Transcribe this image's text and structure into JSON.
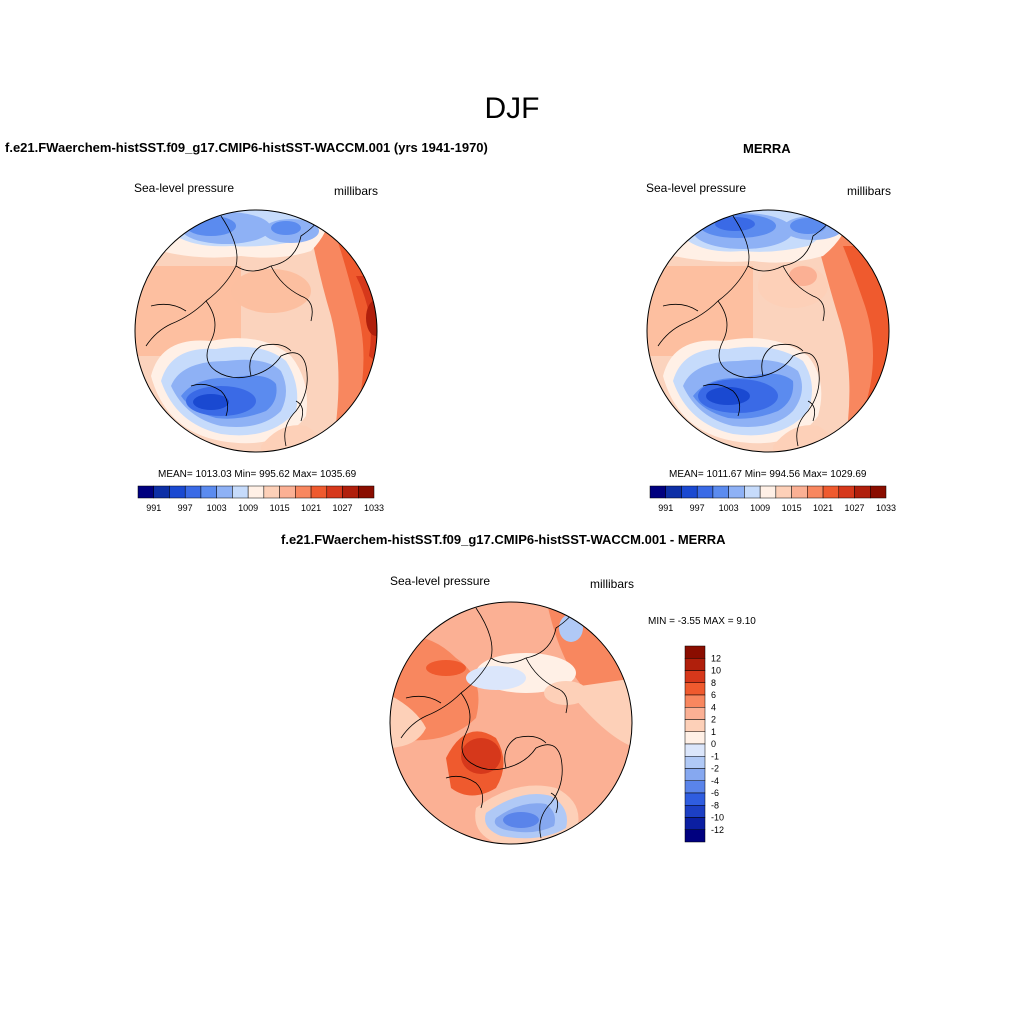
{
  "figure": {
    "title": "DJF"
  },
  "panels": [
    {
      "title": "f.e21.FWaerchem-histSST.f09_g17.CMIP6-histSST-WACCM.001 (yrs 1941-1970)",
      "left_label": "Sea-level pressure",
      "right_label": "millibars",
      "stats": "MEAN= 1013.03  Min= 995.62  Max= 1035.69"
    },
    {
      "title": "MERRA",
      "left_label": "Sea-level pressure",
      "right_label": "millibars",
      "stats": "MEAN= 1011.67  Min= 994.56  Max= 1029.69"
    },
    {
      "title": "f.e21.FWaerchem-histSST.f09_g17.CMIP6-histSST-WACCM.001 - MERRA",
      "left_label": "Sea-level pressure",
      "right_label": "millibars",
      "stats": "MIN =  -3.55 MAX =   9.10"
    }
  ],
  "colorbars": {
    "absolute": {
      "colors": [
        "#00007f",
        "#0d2fa6",
        "#1a49d1",
        "#3a6ae6",
        "#5b8bef",
        "#8eb1f5",
        "#c6dbfb",
        "#fff0e6",
        "#fdd0b8",
        "#fbb094",
        "#f8875f",
        "#ef5a2e",
        "#d6381b",
        "#b01f0c",
        "#8a0d00"
      ],
      "tick_labels": [
        "991",
        "997",
        "1003",
        "1009",
        "1015",
        "1021",
        "1027",
        "1033"
      ]
    },
    "difference": {
      "colors": [
        "#8a0d00",
        "#b01f0c",
        "#d6381b",
        "#ef5a2e",
        "#f8875f",
        "#fbb094",
        "#fdd0b8",
        "#fff0e6",
        "#dbe6fb",
        "#b0c9f6",
        "#86a8f0",
        "#5a84ea",
        "#2f5de0",
        "#1c3fc4",
        "#0b1fa2",
        "#00007f"
      ],
      "tick_labels": [
        "12",
        "10",
        "8",
        "6",
        "4",
        "2",
        "1",
        "0",
        "-1",
        "-2",
        "-4",
        "-6",
        "-8",
        "-10",
        "-12"
      ]
    }
  }
}
